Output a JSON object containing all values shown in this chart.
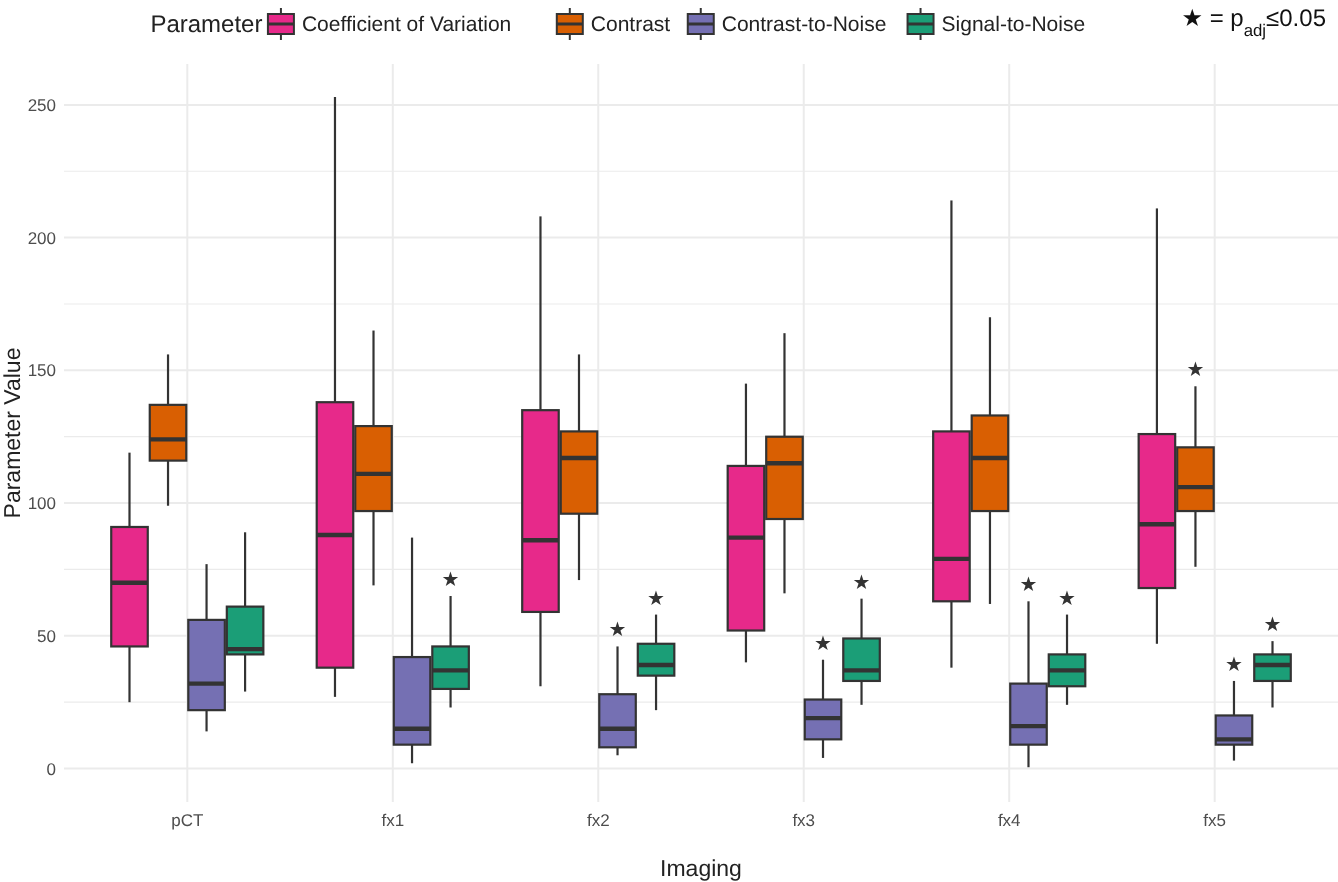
{
  "chart_data": {
    "type": "box",
    "xlabel": "Imaging",
    "ylabel": "Parameter Value",
    "legend_title": "Parameter",
    "legend": "top",
    "grid": true,
    "categories": [
      "pCT",
      "fx1",
      "fx2",
      "fx3",
      "fx4",
      "fx5"
    ],
    "ylim": [
      -12.6,
      265.4
    ],
    "yticks": [
      0,
      {
        "value": 25,
        "label": null
      },
      50,
      {
        "value": 75,
        "label": null
      },
      100,
      {
        "value": 125,
        "label": null
      },
      150,
      {
        "value": 175,
        "label": null
      },
      200,
      {
        "value": 225,
        "label": null
      },
      250
    ],
    "series": [
      {
        "name": "Coefficient of Variation",
        "color": "#e7298a",
        "boxes": [
          {
            "low": 25,
            "q1": 46,
            "median": 70,
            "q3": 91,
            "high": 119
          },
          {
            "low": 27,
            "q1": 38,
            "median": 88,
            "q3": 138,
            "high": 253
          },
          {
            "low": 31,
            "q1": 59,
            "median": 86,
            "q3": 135,
            "high": 208
          },
          {
            "low": 40,
            "q1": 52,
            "median": 87,
            "q3": 114,
            "high": 145
          },
          {
            "low": 38,
            "q1": 63,
            "median": 79,
            "q3": 127,
            "high": 214
          },
          {
            "low": 47,
            "q1": 68,
            "median": 92,
            "q3": 126,
            "high": 211
          }
        ]
      },
      {
        "name": "Contrast",
        "color": "#d95f02",
        "value_labels": [
          null,
          null,
          null,
          null,
          null,
          "★"
        ],
        "boxes": [
          {
            "low": 99,
            "q1": 116,
            "median": 124,
            "q3": 137,
            "high": 156
          },
          {
            "low": 69,
            "q1": 97,
            "median": 111,
            "q3": 129,
            "high": 165
          },
          {
            "low": 71,
            "q1": 96,
            "median": 117,
            "q3": 127,
            "high": 156
          },
          {
            "low": 66,
            "q1": 94,
            "median": 115,
            "q3": 125,
            "high": 164
          },
          {
            "low": 62,
            "q1": 97,
            "median": 117,
            "q3": 133,
            "high": 170
          },
          {
            "low": 76,
            "q1": 97,
            "median": 106,
            "q3": 121,
            "high": 144
          }
        ]
      },
      {
        "name": "Contrast-to-Noise",
        "color": "#7570b3",
        "value_labels": [
          null,
          null,
          "★",
          "★",
          "★",
          "★"
        ],
        "boxes": [
          {
            "low": 14,
            "q1": 22,
            "median": 32,
            "q3": 56,
            "high": 77
          },
          {
            "low": 2,
            "q1": 9,
            "median": 15,
            "q3": 42,
            "high": 87
          },
          {
            "low": 5,
            "q1": 8,
            "median": 15,
            "q3": 28,
            "high": 46
          },
          {
            "low": 4,
            "q1": 11,
            "median": 19,
            "q3": 26,
            "high": 41
          },
          {
            "low": 0.5,
            "q1": 9,
            "median": 16,
            "q3": 32,
            "high": 63
          },
          {
            "low": 3,
            "q1": 9,
            "median": 11,
            "q3": 20,
            "high": 33
          }
        ]
      },
      {
        "name": "Signal-to-Noise",
        "color": "#1b9e77",
        "value_labels": [
          null,
          "★",
          "★",
          "★",
          "★",
          "★"
        ],
        "boxes": [
          {
            "low": 29,
            "q1": 43,
            "median": 45,
            "q3": 61,
            "high": 89
          },
          {
            "low": 23,
            "q1": 30,
            "median": 37,
            "q3": 46,
            "high": 65
          },
          {
            "low": 22,
            "q1": 35,
            "median": 39,
            "q3": 47,
            "high": 58
          },
          {
            "low": 24,
            "q1": 33,
            "median": 37,
            "q3": 49,
            "high": 64
          },
          {
            "low": 24,
            "q1": 31,
            "median": 37,
            "q3": 43,
            "high": 58
          },
          {
            "low": 23,
            "q1": 33,
            "median": 39,
            "q3": 43,
            "high": 48
          }
        ]
      }
    ],
    "annotations": [
      "★ = p$_{adj}$≤0.05"
    ]
  }
}
